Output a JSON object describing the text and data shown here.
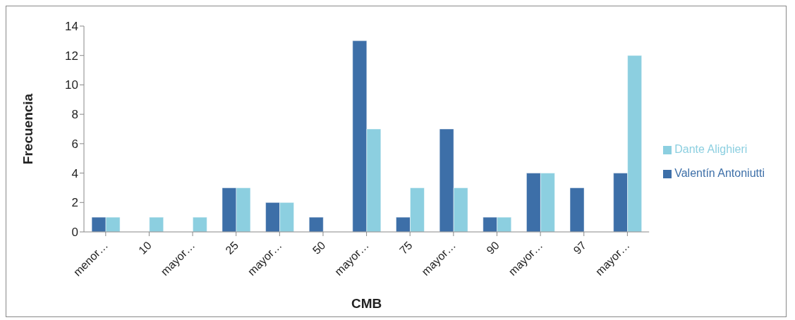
{
  "chart_data": {
    "type": "bar",
    "xlabel": "CMB",
    "ylabel": "Frecuencia",
    "categories": [
      "menor…",
      "10",
      "mayor…",
      "25",
      "mayor…",
      "50",
      "mayor…",
      "75",
      "mayor…",
      "90",
      "mayor…",
      "97",
      "mayor…"
    ],
    "series": [
      {
        "name": "Valentín Antoniutti",
        "color": "#3d6fa8",
        "values": [
          1,
          0,
          0,
          3,
          2,
          1,
          13,
          1,
          7,
          1,
          4,
          3,
          4
        ]
      },
      {
        "name": "Dante Alighieri",
        "color": "#8ccfe0",
        "values": [
          1,
          1,
          1,
          3,
          2,
          0,
          7,
          3,
          3,
          1,
          4,
          0,
          12
        ]
      }
    ],
    "ylim": [
      0,
      14
    ],
    "yticks": [
      0,
      2,
      4,
      6,
      8,
      10,
      12,
      14
    ],
    "grid": false,
    "legend": "right"
  }
}
